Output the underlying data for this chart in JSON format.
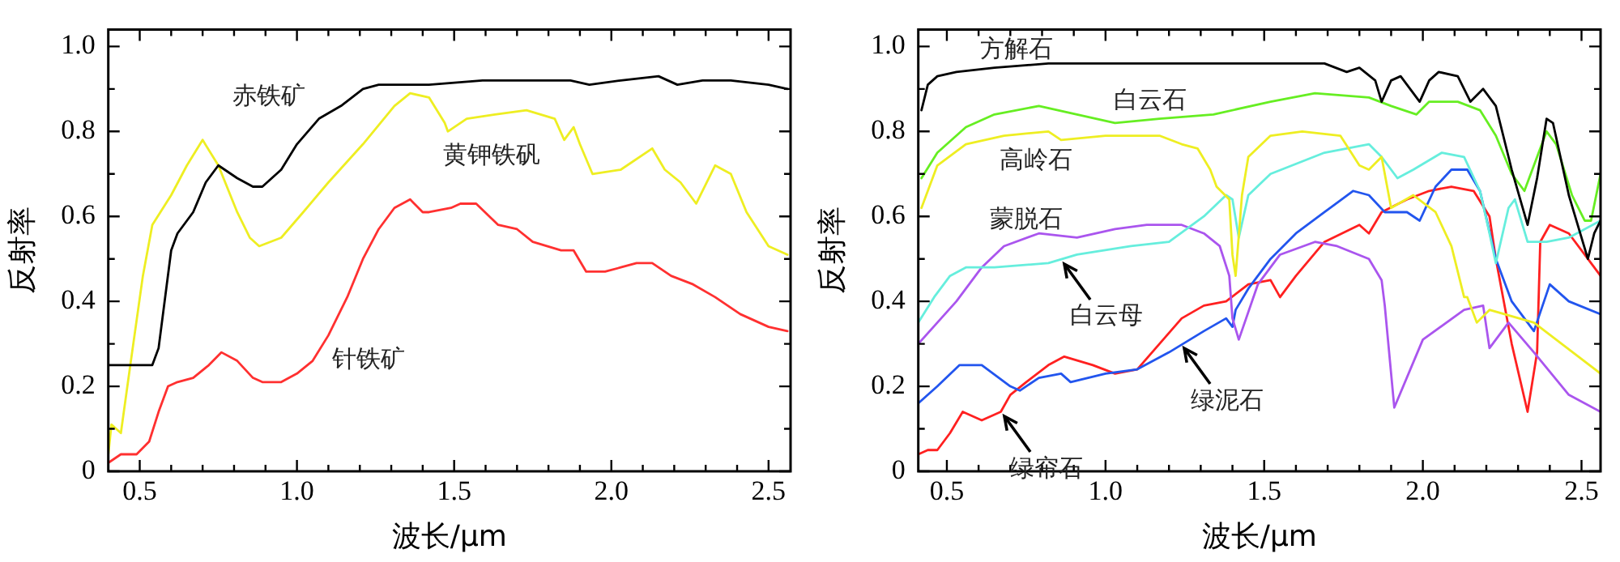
{
  "chart_data": [
    {
      "type": "line",
      "xlabel": "波长/μm",
      "ylabel": "反射率",
      "xlim": [
        0.4,
        2.57
      ],
      "ylim": [
        0,
        1.04
      ],
      "xticks": [
        0.5,
        {
          "value": 0.6,
          "label": null
        },
        {
          "value": 0.7,
          "label": null
        },
        {
          "value": 0.8,
          "label": null
        },
        {
          "value": 0.9,
          "label": null
        },
        {
          "value": 1,
          "label": "1.0"
        },
        {
          "value": 1.1,
          "label": null
        },
        {
          "value": 1.2,
          "label": null
        },
        {
          "value": 1.3,
          "label": null
        },
        {
          "value": 1.4,
          "label": null
        },
        1.5,
        {
          "value": 1.6,
          "label": null
        },
        {
          "value": 1.7,
          "label": null
        },
        {
          "value": 1.8,
          "label": null
        },
        {
          "value": 1.9,
          "label": null
        },
        {
          "value": 2,
          "label": "2.0"
        },
        {
          "value": 2.1,
          "label": null
        },
        {
          "value": 2.2,
          "label": null
        },
        {
          "value": 2.3,
          "label": null
        },
        {
          "value": 2.4,
          "label": null
        },
        2.5
      ],
      "yticks": [
        0,
        {
          "value": 0.1,
          "label": null
        },
        0.2,
        {
          "value": 0.3,
          "label": null
        },
        0.4,
        {
          "value": 0.5,
          "label": null
        },
        0.6,
        {
          "value": 0.7,
          "label": null
        },
        0.8,
        {
          "value": 0.9,
          "label": null
        },
        {
          "value": 1,
          "label": "1.0"
        }
      ],
      "marker": "none",
      "line_style": "solid",
      "series": [
        {
          "name": "赤铁矿",
          "color": "#000000",
          "x": [
            0.4,
            0.54,
            0.56,
            0.6,
            0.62,
            0.67,
            0.71,
            0.75,
            0.81,
            0.86,
            0.89,
            0.95,
            1.0,
            1.07,
            1.14,
            1.21,
            1.26,
            1.42,
            1.59,
            1.77,
            1.87,
            1.93,
            2.03,
            2.15,
            2.21,
            2.29,
            2.38,
            2.5,
            2.56
          ],
          "values": [
            0.25,
            0.25,
            0.29,
            0.52,
            0.56,
            0.61,
            0.68,
            0.72,
            0.69,
            0.67,
            0.67,
            0.71,
            0.77,
            0.83,
            0.86,
            0.9,
            0.91,
            0.91,
            0.92,
            0.92,
            0.92,
            0.91,
            0.92,
            0.93,
            0.91,
            0.92,
            0.92,
            0.91,
            0.9
          ]
        },
        {
          "name": "黄钾铁矾",
          "color": "#eeee22",
          "x": [
            0.4,
            0.41,
            0.44,
            0.47,
            0.51,
            0.54,
            0.6,
            0.65,
            0.7,
            0.75,
            0.81,
            0.85,
            0.88,
            0.95,
            1.02,
            1.1,
            1.21,
            1.31,
            1.36,
            1.42,
            1.47,
            1.48,
            1.54,
            1.63,
            1.73,
            1.82,
            1.85,
            1.88,
            1.9,
            1.94,
            2.03,
            2.13,
            2.17,
            2.22,
            2.27,
            2.33,
            2.38,
            2.43,
            2.5,
            2.56
          ],
          "values": [
            0.04,
            0.11,
            0.09,
            0.25,
            0.46,
            0.58,
            0.65,
            0.72,
            0.78,
            0.72,
            0.61,
            0.55,
            0.53,
            0.55,
            0.61,
            0.68,
            0.77,
            0.86,
            0.89,
            0.88,
            0.82,
            0.8,
            0.83,
            0.84,
            0.85,
            0.83,
            0.78,
            0.81,
            0.77,
            0.7,
            0.71,
            0.76,
            0.71,
            0.68,
            0.63,
            0.72,
            0.7,
            0.61,
            0.53,
            0.51
          ]
        },
        {
          "name": "针铁矿",
          "color": "#ff3030",
          "x": [
            0.4,
            0.44,
            0.49,
            0.53,
            0.56,
            0.59,
            0.62,
            0.67,
            0.72,
            0.76,
            0.81,
            0.86,
            0.89,
            0.95,
            1.0,
            1.05,
            1.1,
            1.16,
            1.21,
            1.26,
            1.31,
            1.36,
            1.4,
            1.42,
            1.49,
            1.52,
            1.57,
            1.64,
            1.7,
            1.75,
            1.84,
            1.88,
            1.92,
            1.98,
            2.03,
            2.08,
            2.13,
            2.19,
            2.26,
            2.33,
            2.41,
            2.5,
            2.56
          ],
          "values": [
            0.02,
            0.04,
            0.04,
            0.07,
            0.14,
            0.2,
            0.21,
            0.22,
            0.25,
            0.28,
            0.26,
            0.22,
            0.21,
            0.21,
            0.23,
            0.26,
            0.32,
            0.41,
            0.5,
            0.57,
            0.62,
            0.64,
            0.61,
            0.61,
            0.62,
            0.63,
            0.63,
            0.58,
            0.57,
            0.54,
            0.52,
            0.52,
            0.47,
            0.47,
            0.48,
            0.49,
            0.49,
            0.46,
            0.44,
            0.41,
            0.37,
            0.34,
            0.33
          ]
        }
      ]
    },
    {
      "type": "line",
      "xlabel": "波长/μm",
      "ylabel": "反射率",
      "xlim": [
        0.41,
        2.56
      ],
      "ylim": [
        0,
        1.04
      ],
      "xticks": [
        0.5,
        {
          "value": 0.6,
          "label": null
        },
        {
          "value": 0.7,
          "label": null
        },
        {
          "value": 0.8,
          "label": null
        },
        {
          "value": 0.9,
          "label": null
        },
        {
          "value": 1,
          "label": "1.0"
        },
        {
          "value": 1.1,
          "label": null
        },
        {
          "value": 1.2,
          "label": null
        },
        {
          "value": 1.3,
          "label": null
        },
        {
          "value": 1.4,
          "label": null
        },
        1.5,
        {
          "value": 1.6,
          "label": null
        },
        {
          "value": 1.7,
          "label": null
        },
        {
          "value": 1.8,
          "label": null
        },
        {
          "value": 1.9,
          "label": null
        },
        {
          "value": 2,
          "label": "2.0"
        },
        {
          "value": 2.1,
          "label": null
        },
        {
          "value": 2.2,
          "label": null
        },
        {
          "value": 2.3,
          "label": null
        },
        {
          "value": 2.4,
          "label": null
        },
        2.5
      ],
      "yticks": [
        0,
        {
          "value": 0.1,
          "label": null
        },
        0.2,
        {
          "value": 0.3,
          "label": null
        },
        0.4,
        {
          "value": 0.5,
          "label": null
        },
        0.6,
        {
          "value": 0.7,
          "label": null
        },
        0.8,
        {
          "value": 0.9,
          "label": null
        },
        {
          "value": 1,
          "label": "1.0"
        }
      ],
      "marker": "none",
      "line_style": "solid",
      "series": [
        {
          "name": "方解石",
          "color": "#000000",
          "x": [
            0.42,
            0.44,
            0.47,
            0.53,
            0.65,
            0.82,
            1.0,
            1.34,
            1.69,
            1.76,
            1.8,
            1.85,
            1.87,
            1.9,
            1.93,
            1.99,
            2.02,
            2.05,
            2.11,
            2.15,
            2.19,
            2.23,
            2.28,
            2.33,
            2.36,
            2.39,
            2.41,
            2.46,
            2.52,
            2.54,
            2.56
          ],
          "values": [
            0.85,
            0.91,
            0.93,
            0.94,
            0.95,
            0.96,
            0.96,
            0.96,
            0.96,
            0.94,
            0.95,
            0.92,
            0.87,
            0.92,
            0.93,
            0.87,
            0.92,
            0.94,
            0.93,
            0.87,
            0.9,
            0.86,
            0.71,
            0.58,
            0.69,
            0.83,
            0.82,
            0.65,
            0.5,
            0.56,
            0.59
          ]
        },
        {
          "name": "白云石",
          "color": "#66ee22",
          "x": [
            0.42,
            0.47,
            0.56,
            0.65,
            0.79,
            0.91,
            1.03,
            1.17,
            1.34,
            1.52,
            1.66,
            1.83,
            1.9,
            1.98,
            2.02,
            2.11,
            2.18,
            2.23,
            2.28,
            2.32,
            2.36,
            2.39,
            2.42,
            2.47,
            2.51,
            2.53,
            2.56
          ],
          "values": [
            0.69,
            0.75,
            0.81,
            0.84,
            0.86,
            0.84,
            0.82,
            0.83,
            0.84,
            0.87,
            0.89,
            0.88,
            0.86,
            0.84,
            0.87,
            0.87,
            0.85,
            0.79,
            0.7,
            0.66,
            0.74,
            0.8,
            0.77,
            0.65,
            0.59,
            0.59,
            0.7
          ]
        },
        {
          "name": "高岭石",
          "color": "#eeee22",
          "x": [
            0.42,
            0.47,
            0.56,
            0.68,
            0.82,
            0.86,
            1.0,
            1.17,
            1.24,
            1.29,
            1.33,
            1.35,
            1.39,
            1.4,
            1.41,
            1.43,
            1.45,
            1.52,
            1.62,
            1.74,
            1.8,
            1.83,
            1.87,
            1.9,
            1.97,
            2.04,
            2.09,
            2.13,
            2.14,
            2.17,
            2.21,
            2.35,
            2.42,
            2.56
          ],
          "values": [
            0.62,
            0.72,
            0.77,
            0.79,
            0.8,
            0.78,
            0.79,
            0.79,
            0.77,
            0.76,
            0.71,
            0.67,
            0.64,
            0.51,
            0.46,
            0.65,
            0.74,
            0.79,
            0.8,
            0.79,
            0.72,
            0.71,
            0.74,
            0.62,
            0.65,
            0.61,
            0.53,
            0.41,
            0.41,
            0.35,
            0.38,
            0.35,
            0.31,
            0.23
          ]
        },
        {
          "color": "#66eedd",
          "x": [
            0.41,
            0.46,
            0.51,
            0.56,
            0.65,
            0.82,
            0.91,
            1.08,
            1.2,
            1.31,
            1.38,
            1.4,
            1.42,
            1.45,
            1.52,
            1.69,
            1.83,
            1.87,
            1.92,
            1.97,
            2.06,
            2.13,
            2.18,
            2.21,
            2.23,
            2.27,
            2.29,
            2.33,
            2.39,
            2.46,
            2.56
          ],
          "values": [
            0.35,
            0.41,
            0.46,
            0.48,
            0.48,
            0.49,
            0.51,
            0.53,
            0.54,
            0.6,
            0.65,
            0.64,
            0.55,
            0.65,
            0.7,
            0.75,
            0.77,
            0.74,
            0.69,
            0.71,
            0.75,
            0.74,
            0.66,
            0.56,
            0.49,
            0.62,
            0.64,
            0.54,
            0.54,
            0.55,
            0.59
          ]
        },
        {
          "name": "蒙脱石",
          "color": "#aa55ee",
          "x": [
            0.41,
            0.47,
            0.53,
            0.61,
            0.68,
            0.79,
            0.91,
            1.03,
            1.13,
            1.24,
            1.31,
            1.36,
            1.39,
            1.4,
            1.42,
            1.48,
            1.55,
            1.66,
            1.73,
            1.83,
            1.87,
            1.88,
            1.91,
            2.0,
            2.13,
            2.19,
            2.21,
            2.27,
            2.35,
            2.46,
            2.56
          ],
          "values": [
            0.3,
            0.35,
            0.4,
            0.48,
            0.53,
            0.56,
            0.55,
            0.57,
            0.58,
            0.58,
            0.56,
            0.53,
            0.46,
            0.36,
            0.31,
            0.44,
            0.51,
            0.54,
            0.53,
            0.5,
            0.45,
            0.39,
            0.15,
            0.31,
            0.38,
            0.39,
            0.29,
            0.35,
            0.28,
            0.18,
            0.14
          ]
        },
        {
          "color": "#2255ee",
          "x": [
            0.41,
            0.47,
            0.54,
            0.61,
            0.7,
            0.73,
            0.79,
            0.86,
            0.89,
            1.0,
            1.1,
            1.2,
            1.31,
            1.38,
            1.4,
            1.41,
            1.45,
            1.52,
            1.6,
            1.69,
            1.78,
            1.83,
            1.88,
            1.95,
            1.99,
            2.04,
            2.09,
            2.14,
            2.18,
            2.23,
            2.28,
            2.35,
            2.4,
            2.46,
            2.56
          ],
          "values": [
            0.16,
            0.2,
            0.25,
            0.25,
            0.2,
            0.19,
            0.22,
            0.23,
            0.21,
            0.23,
            0.24,
            0.28,
            0.33,
            0.36,
            0.34,
            0.38,
            0.43,
            0.5,
            0.56,
            0.61,
            0.66,
            0.65,
            0.61,
            0.61,
            0.59,
            0.67,
            0.71,
            0.71,
            0.66,
            0.5,
            0.4,
            0.33,
            0.44,
            0.4,
            0.37
          ]
        },
        {
          "color": "#ff2020",
          "x": [
            0.41,
            0.44,
            0.47,
            0.51,
            0.55,
            0.61,
            0.67,
            0.7,
            0.75,
            0.82,
            0.87,
            0.96,
            1.03,
            1.1,
            1.17,
            1.24,
            1.31,
            1.38,
            1.45,
            1.52,
            1.55,
            1.6,
            1.69,
            1.8,
            1.83,
            1.87,
            1.95,
            2.02,
            2.09,
            2.16,
            2.21,
            2.23,
            2.28,
            2.33,
            2.36,
            2.37,
            2.4,
            2.46,
            2.53,
            2.56
          ],
          "values": [
            0.04,
            0.05,
            0.05,
            0.09,
            0.14,
            0.12,
            0.14,
            0.18,
            0.21,
            0.25,
            0.27,
            0.25,
            0.23,
            0.24,
            0.3,
            0.36,
            0.39,
            0.4,
            0.44,
            0.45,
            0.41,
            0.46,
            0.54,
            0.58,
            0.56,
            0.61,
            0.64,
            0.66,
            0.67,
            0.66,
            0.6,
            0.5,
            0.3,
            0.14,
            0.28,
            0.54,
            0.58,
            0.56,
            0.49,
            0.46
          ]
        }
      ],
      "annotations": [
        {
          "text": "白云母",
          "x": 0.86,
          "y": 0.5
        },
        {
          "text": "绿泥石",
          "x": 1.24,
          "y": 0.3
        },
        {
          "text": "绿帘石",
          "x": 0.67,
          "y": 0.14
        }
      ]
    }
  ]
}
